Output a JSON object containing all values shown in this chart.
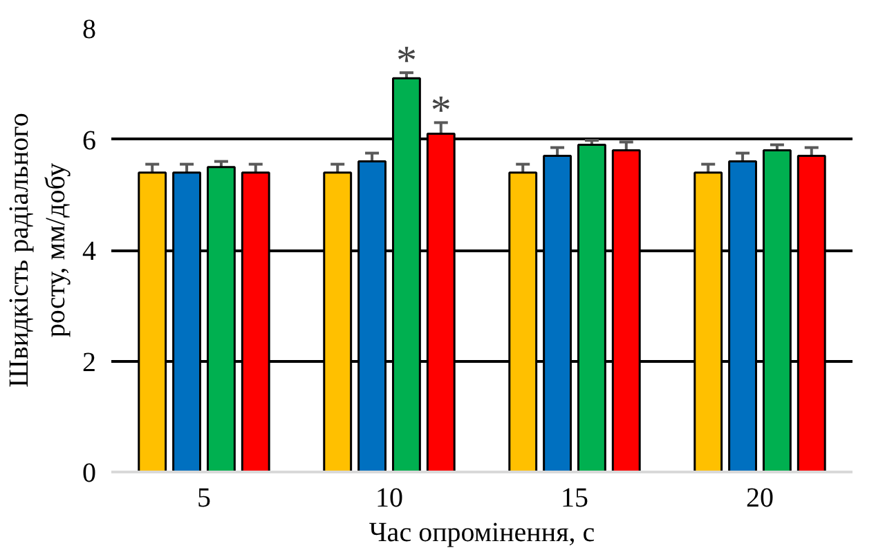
{
  "chart_data": {
    "type": "bar",
    "xlabel": "Час опромінення, с",
    "ylabel": "Швидкість радіального росту, мм/добу",
    "categories": [
      "5",
      "10",
      "15",
      "20"
    ],
    "series": [
      {
        "color": "#ffc000",
        "values": [
          5.4,
          5.4,
          5.4,
          5.4
        ],
        "errors": [
          0.15,
          0.15,
          0.15,
          0.15
        ]
      },
      {
        "color": "#0070c0",
        "values": [
          5.4,
          5.6,
          5.7,
          5.6
        ],
        "errors": [
          0.15,
          0.15,
          0.15,
          0.15
        ]
      },
      {
        "color": "#00b050",
        "values": [
          5.5,
          7.1,
          5.9,
          5.8
        ],
        "errors": [
          0.1,
          0.1,
          0.08,
          0.1
        ]
      },
      {
        "color": "#ff0000",
        "values": [
          5.4,
          6.1,
          5.8,
          5.7
        ],
        "errors": [
          0.15,
          0.2,
          0.15,
          0.15
        ]
      }
    ],
    "ylim": [
      0,
      8
    ],
    "yticks": [
      0,
      2,
      4,
      6,
      8
    ],
    "grid": "y",
    "annotations": [
      {
        "text": "*",
        "x": "10",
        "y": 7.2
      },
      {
        "text": "*",
        "x": "10",
        "y": 6.3
      }
    ]
  }
}
